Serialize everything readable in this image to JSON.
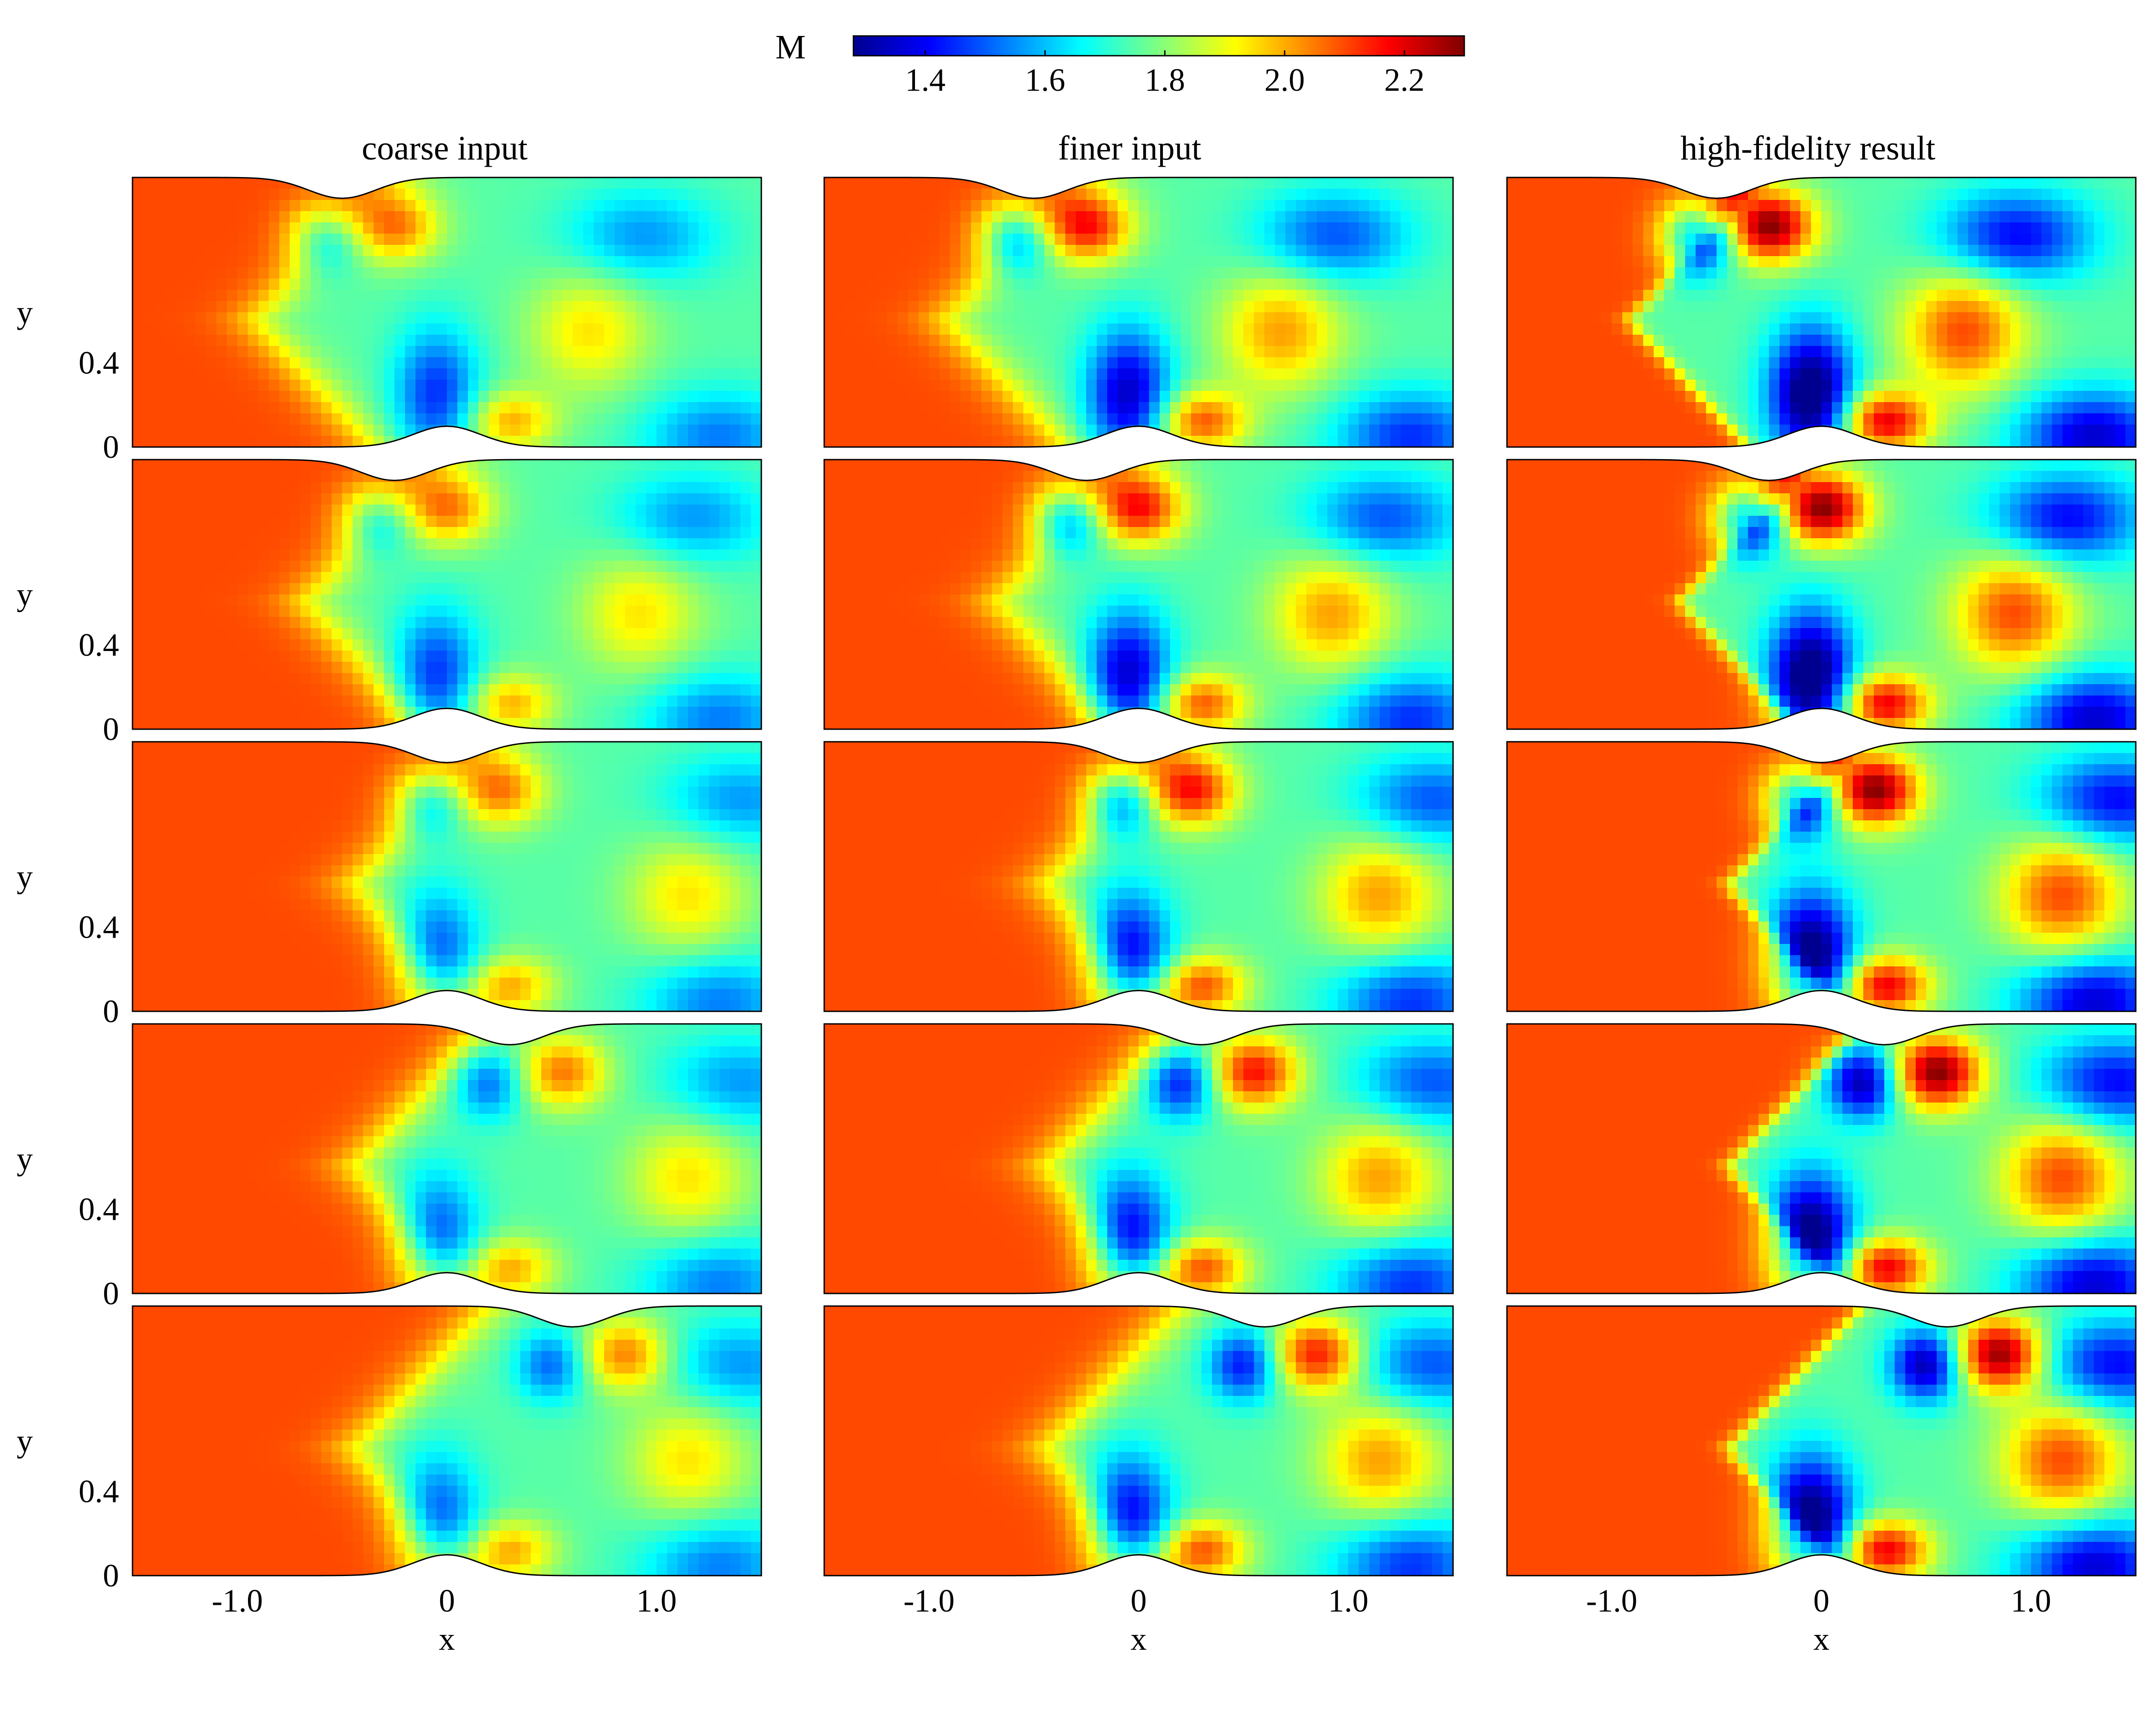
{
  "chart_data": {
    "type": "heatmap",
    "colorbar": {
      "label": "M",
      "range": [
        1.28,
        2.3
      ],
      "ticks": [
        1.4,
        1.6,
        1.8,
        2.0,
        2.2
      ],
      "tick_labels": [
        "1.4",
        "1.6",
        "1.8",
        "2.0",
        "2.2"
      ],
      "colormap": "jet"
    },
    "column_titles": [
      "coarse input",
      "finer input",
      "high-fidelity result"
    ],
    "xlabel": "x",
    "ylabel": "y",
    "xlim": [
      -1.5,
      1.5
    ],
    "ylim": [
      0,
      1.28
    ],
    "x_ticks": [
      -1.0,
      0,
      1.0
    ],
    "x_tick_labels": [
      "-1.0",
      "0",
      "1.0"
    ],
    "y_ticks": [
      0,
      0.4
    ],
    "y_tick_labels": [
      "0",
      "0.4"
    ],
    "inflow_mach": 2.1,
    "rows": [
      {
        "bottom_bump_x": 0.0,
        "top_bump_x": -0.5,
        "shock_x": -0.92
      },
      {
        "bottom_bump_x": 0.0,
        "top_bump_x": -0.25,
        "shock_x": -0.68
      },
      {
        "bottom_bump_x": 0.0,
        "top_bump_x": 0.0,
        "shock_x": -0.45
      },
      {
        "bottom_bump_x": 0.0,
        "top_bump_x": 0.3,
        "shock_x": -0.45
      },
      {
        "bottom_bump_x": 0.0,
        "top_bump_x": 0.6,
        "shock_x": -0.45
      }
    ],
    "grid": false
  },
  "colors": {
    "colormap_stops": [
      "#00008f",
      "#0000ff",
      "#00ffff",
      "#ffff00",
      "#ff0000",
      "#800000"
    ],
    "outline": "#000000",
    "background": "#ffffff"
  }
}
